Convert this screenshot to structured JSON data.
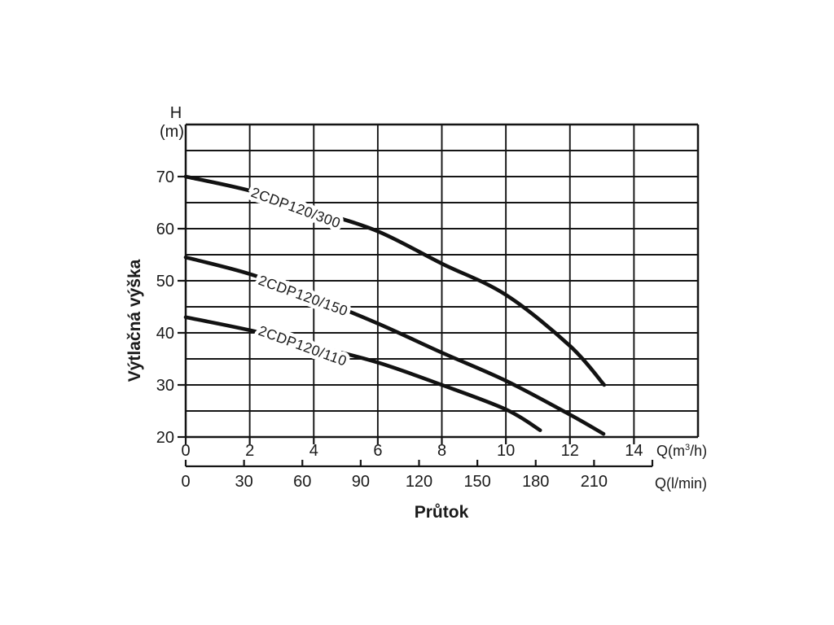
{
  "colors": {
    "line": "#151515",
    "curve": "#121212",
    "text": "#1a1a1a",
    "background": "#ffffff"
  },
  "chart_data": {
    "type": "line",
    "title": "",
    "xlabel": "Průtok",
    "y_axis": {
      "symbol": "H",
      "unit": "(m)",
      "title": "Výtlačná výška",
      "range": [
        20,
        80
      ],
      "grid_step": 5,
      "ticks": [
        20,
        30,
        40,
        50,
        60,
        70
      ]
    },
    "x_axis_primary": {
      "unit_prefix": "Q(m",
      "unit_sup": "3",
      "unit_suffix": "/h)",
      "range": [
        0,
        16
      ],
      "grid_step": 2,
      "ticks": [
        0,
        2,
        4,
        6,
        8,
        10,
        12,
        14
      ]
    },
    "x_axis_secondary": {
      "unit_label": "Q(l/min)",
      "range": [
        0,
        240
      ],
      "ticks": [
        0,
        30,
        60,
        90,
        120,
        150,
        180,
        210
      ],
      "unlabeled_ticks": [
        240
      ]
    },
    "series": [
      {
        "name": "2CDP120/300",
        "points": [
          [
            0,
            70
          ],
          [
            2,
            67.3
          ],
          [
            4,
            63.5
          ],
          [
            6,
            59.5
          ],
          [
            8,
            53.3
          ],
          [
            10,
            47.3
          ],
          [
            12,
            37.5
          ],
          [
            13.07,
            30
          ]
        ]
      },
      {
        "name": "2CDP120/150",
        "points": [
          [
            0,
            54.5
          ],
          [
            2,
            51.3
          ],
          [
            4,
            46.8
          ],
          [
            6,
            41.8
          ],
          [
            8,
            36.2
          ],
          [
            10,
            30.8
          ],
          [
            12,
            24.3
          ],
          [
            13.05,
            20.6
          ]
        ]
      },
      {
        "name": "2CDP120/110",
        "points": [
          [
            0,
            43
          ],
          [
            2,
            40.5
          ],
          [
            4,
            37.5
          ],
          [
            6,
            34.3
          ],
          [
            8,
            30
          ],
          [
            10,
            25.3
          ],
          [
            11.07,
            21.3
          ]
        ]
      }
    ],
    "legend": "curve labels drawn along curves",
    "grid": true
  },
  "labels": {
    "h_symbol": "H",
    "h_unit": "(m)",
    "y_title": "Výtlačná výška",
    "x_title": "Průtok",
    "q_m3h_prefix": "Q(m",
    "q_m3h_sup": "3",
    "q_m3h_suffix": "/h)",
    "q_lmin": "Q(l/min)"
  }
}
